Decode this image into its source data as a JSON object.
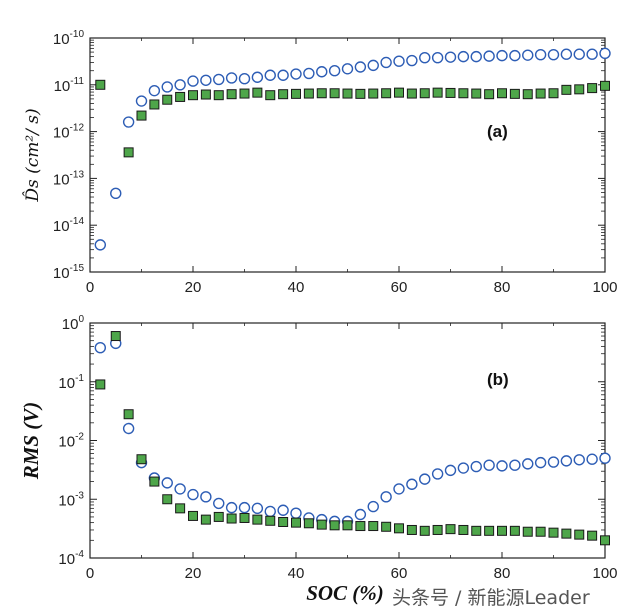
{
  "watermark": "头条号 / 新能源Leader",
  "colors": {
    "circle": "#2d5db5",
    "square_fill": "#4ea64a",
    "square_stroke": "#1a1a1a",
    "axis": "#222222"
  },
  "chart_data": [
    {
      "type": "scatter",
      "panel_label": "(a)",
      "ylabel": "D̂s (cm²/ s)",
      "xlabel": "",
      "xlim": [
        0,
        100
      ],
      "yscale": "log",
      "ylim": [
        1e-15,
        1e-10
      ],
      "x_ticks": [
        "0",
        "20",
        "40",
        "60",
        "80",
        "100"
      ],
      "y_ticks": [
        {
          "base": "10",
          "exp": "-15"
        },
        {
          "base": "10",
          "exp": "-14"
        },
        {
          "base": "10",
          "exp": "-13"
        },
        {
          "base": "10",
          "exp": "-12"
        },
        {
          "base": "10",
          "exp": "-11"
        },
        {
          "base": "10",
          "exp": "-10"
        }
      ],
      "legend": "none",
      "series": [
        {
          "marker": "circle",
          "x": [
            2,
            5,
            7.5,
            10,
            12.5,
            15,
            17.5,
            20,
            22.5,
            25,
            27.5,
            30,
            32.5,
            35,
            37.5,
            40,
            42.5,
            45,
            47.5,
            50,
            52.5,
            55,
            57.5,
            60,
            62.5,
            65,
            67.5,
            70,
            72.5,
            75,
            77.5,
            80,
            82.5,
            85,
            87.5,
            90,
            92.5,
            95,
            97.5,
            100
          ],
          "y": [
            3.8e-15,
            4.8e-14,
            1.6e-12,
            4.5e-12,
            7.5e-12,
            9e-12,
            1e-11,
            1.2e-11,
            1.25e-11,
            1.3e-11,
            1.4e-11,
            1.35e-11,
            1.45e-11,
            1.6e-11,
            1.6e-11,
            1.7e-11,
            1.75e-11,
            1.9e-11,
            2e-11,
            2.2e-11,
            2.4e-11,
            2.6e-11,
            3e-11,
            3.2e-11,
            3.3e-11,
            3.8e-11,
            3.8e-11,
            3.9e-11,
            4e-11,
            4e-11,
            4.1e-11,
            4.2e-11,
            4.2e-11,
            4.3e-11,
            4.4e-11,
            4.4e-11,
            4.5e-11,
            4.5e-11,
            4.5e-11,
            4.7e-11
          ]
        },
        {
          "marker": "square",
          "x": [
            2,
            7.5,
            10,
            12.5,
            15,
            17.5,
            20,
            22.5,
            25,
            27.5,
            30,
            32.5,
            35,
            37.5,
            40,
            42.5,
            45,
            47.5,
            50,
            52.5,
            55,
            57.5,
            60,
            62.5,
            65,
            67.5,
            70,
            72.5,
            75,
            77.5,
            80,
            82.5,
            85,
            87.5,
            90,
            92.5,
            95,
            97.5,
            100
          ],
          "y": [
            1e-11,
            3.6e-13,
            2.2e-12,
            3.8e-12,
            4.8e-12,
            5.5e-12,
            6e-12,
            6.2e-12,
            6e-12,
            6.3e-12,
            6.5e-12,
            6.8e-12,
            6e-12,
            6.3e-12,
            6.4e-12,
            6.5e-12,
            6.6e-12,
            6.6e-12,
            6.5e-12,
            6.4e-12,
            6.5e-12,
            6.6e-12,
            6.8e-12,
            6.5e-12,
            6.6e-12,
            6.8e-12,
            6.7e-12,
            6.6e-12,
            6.5e-12,
            6.3e-12,
            6.6e-12,
            6.4e-12,
            6.3e-12,
            6.5e-12,
            6.6e-12,
            7.8e-12,
            8e-12,
            8.5e-12,
            9.5e-12
          ]
        }
      ]
    },
    {
      "type": "scatter",
      "panel_label": "(b)",
      "ylabel": "RMS (V)",
      "xlabel": "SOC (%)",
      "xlim": [
        0,
        100
      ],
      "yscale": "log",
      "ylim": [
        0.0001,
        1
      ],
      "x_ticks": [
        "0",
        "20",
        "40",
        "60",
        "80",
        "100"
      ],
      "y_ticks": [
        {
          "base": "10",
          "exp": "-4"
        },
        {
          "base": "10",
          "exp": "-3"
        },
        {
          "base": "10",
          "exp": "-2"
        },
        {
          "base": "10",
          "exp": "-1"
        },
        {
          "base": "10",
          "exp": "0"
        }
      ],
      "legend": "none",
      "series": [
        {
          "marker": "circle",
          "x": [
            2,
            5,
            7.5,
            10,
            12.5,
            15,
            17.5,
            20,
            22.5,
            25,
            27.5,
            30,
            32.5,
            35,
            37.5,
            40,
            42.5,
            45,
            47.5,
            50,
            52.5,
            55,
            57.5,
            60,
            62.5,
            65,
            67.5,
            70,
            72.5,
            75,
            77.5,
            80,
            82.5,
            85,
            87.5,
            90,
            92.5,
            95,
            97.5,
            100
          ],
          "y": [
            0.38,
            0.45,
            0.016,
            0.0042,
            0.0023,
            0.0019,
            0.0015,
            0.0012,
            0.0011,
            0.00085,
            0.00072,
            0.00072,
            0.0007,
            0.00062,
            0.00065,
            0.00058,
            0.00048,
            0.00045,
            0.00042,
            0.00042,
            0.00055,
            0.00075,
            0.0011,
            0.0015,
            0.0018,
            0.0022,
            0.0027,
            0.0031,
            0.0034,
            0.0036,
            0.0038,
            0.0037,
            0.0038,
            0.004,
            0.0042,
            0.0043,
            0.0045,
            0.0047,
            0.0048,
            0.005
          ]
        },
        {
          "marker": "square",
          "x": [
            2,
            5,
            7.5,
            10,
            12.5,
            15,
            17.5,
            20,
            22.5,
            25,
            27.5,
            30,
            32.5,
            35,
            37.5,
            40,
            42.5,
            45,
            47.5,
            50,
            52.5,
            55,
            57.5,
            60,
            62.5,
            65,
            67.5,
            70,
            72.5,
            75,
            77.5,
            80,
            82.5,
            85,
            87.5,
            90,
            92.5,
            95,
            97.5,
            100
          ],
          "y": [
            0.09,
            0.6,
            0.028,
            0.0048,
            0.002,
            0.001,
            0.0007,
            0.00052,
            0.00045,
            0.0005,
            0.00047,
            0.00048,
            0.00045,
            0.00043,
            0.00041,
            0.0004,
            0.00039,
            0.00037,
            0.00036,
            0.00036,
            0.00035,
            0.00035,
            0.00034,
            0.00032,
            0.0003,
            0.00029,
            0.0003,
            0.00031,
            0.0003,
            0.00029,
            0.00029,
            0.00029,
            0.00029,
            0.00028,
            0.00028,
            0.00027,
            0.00026,
            0.00025,
            0.00024,
            0.0002
          ]
        }
      ]
    }
  ]
}
